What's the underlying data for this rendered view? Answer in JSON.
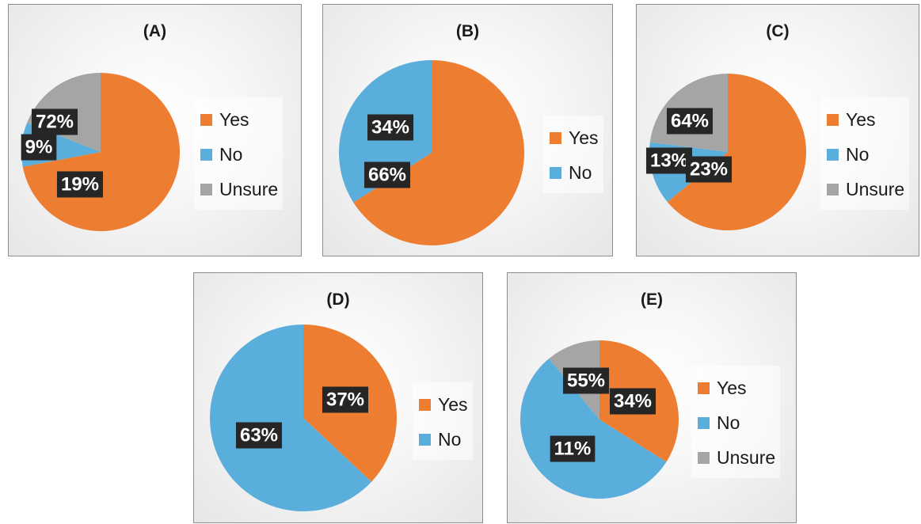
{
  "colors": {
    "yes": "#ed7d31",
    "no": "#5aaedc",
    "unsure": "#a5a5a5",
    "label_bg": "#262626"
  },
  "chart_data": [
    {
      "type": "pie",
      "title": "(A)",
      "series": [
        {
          "name": "Yes",
          "value": 72,
          "label": "72%",
          "color": "#ed7d31"
        },
        {
          "name": "No",
          "value": 9,
          "label": "9%",
          "color": "#5aaedc"
        },
        {
          "name": "Unsure",
          "value": 19,
          "label": "19%",
          "color": "#a5a5a5"
        }
      ],
      "legend": [
        "Yes",
        "No",
        "Unsure"
      ],
      "legend_position": "right"
    },
    {
      "type": "pie",
      "title": "(B)",
      "series": [
        {
          "name": "Yes",
          "value": 66,
          "label": "66%",
          "color": "#ed7d31"
        },
        {
          "name": "No",
          "value": 34,
          "label": "34%",
          "color": "#5aaedc"
        }
      ],
      "legend": [
        "Yes",
        "No"
      ],
      "legend_position": "right"
    },
    {
      "type": "pie",
      "title": "(C)",
      "series": [
        {
          "name": "Yes",
          "value": 64,
          "label": "64%",
          "color": "#ed7d31"
        },
        {
          "name": "No",
          "value": 13,
          "label": "13%",
          "color": "#5aaedc"
        },
        {
          "name": "Unsure",
          "value": 23,
          "label": "23%",
          "color": "#a5a5a5"
        }
      ],
      "legend": [
        "Yes",
        "No",
        "Unsure"
      ],
      "legend_position": "right"
    },
    {
      "type": "pie",
      "title": "(D)",
      "series": [
        {
          "name": "Yes",
          "value": 37,
          "label": "37%",
          "color": "#ed7d31"
        },
        {
          "name": "No",
          "value": 63,
          "label": "63%",
          "color": "#5aaedc"
        }
      ],
      "legend": [
        "Yes",
        "No"
      ],
      "legend_position": "right"
    },
    {
      "type": "pie",
      "title": "(E)",
      "series": [
        {
          "name": "Yes",
          "value": 34,
          "label": "34%",
          "color": "#ed7d31"
        },
        {
          "name": "No",
          "value": 55,
          "label": "55%",
          "color": "#5aaedc"
        },
        {
          "name": "Unsure",
          "value": 11,
          "label": "11%",
          "color": "#a5a5a5"
        }
      ],
      "legend": [
        "Yes",
        "No",
        "Unsure"
      ],
      "legend_position": "right"
    }
  ]
}
